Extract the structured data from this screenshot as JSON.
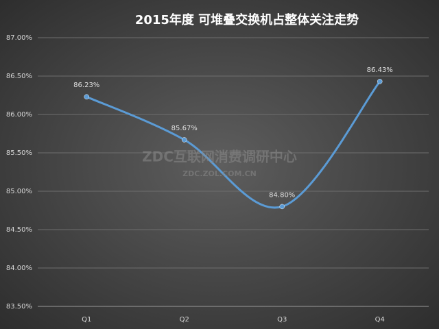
{
  "chart_data": {
    "type": "line",
    "title": "2015年度 可堆叠交换机占整体关注走势",
    "watermark": "ZDC互联网消费调研中心",
    "watermark_url": "ZDC.ZOL.COM.CN",
    "categories": [
      "Q1",
      "Q2",
      "Q3",
      "Q4"
    ],
    "values": [
      86.23,
      85.67,
      84.8,
      86.43
    ],
    "value_labels": [
      "86.23%",
      "85.67%",
      "84.80%",
      "86.43%"
    ],
    "color": "#5b9bd5",
    "smooth": true,
    "ylim": [
      83.5,
      87
    ],
    "yticks": [
      {
        "value": 83.5,
        "label": "83.50%"
      },
      {
        "value": 84,
        "label": "84.00%"
      },
      {
        "value": 84.5,
        "label": "84.50%"
      },
      {
        "value": 85,
        "label": "85.00%"
      },
      {
        "value": 85.5,
        "label": "85.50%"
      },
      {
        "value": 86,
        "label": "86.00%"
      },
      {
        "value": 86.5,
        "label": "86.50%"
      },
      {
        "value": 87,
        "label": "87.00%"
      }
    ],
    "grid": true
  }
}
